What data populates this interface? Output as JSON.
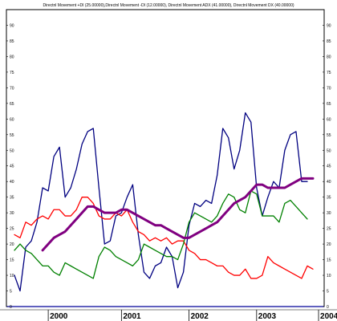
{
  "chart_data": {
    "type": "line",
    "title": "Directnl Movement +DI (25.00000),Directnl Movement -DI (12.00000), Directnl Movement ADX (41.00000), Directnl Movement DX (40.00000)",
    "xlabel": "",
    "ylabel": "",
    "ylim": [
      0,
      95
    ],
    "grid": false,
    "legend": "none",
    "x_labels": [
      "2000",
      "2001",
      "2002",
      "2003",
      "2004",
      "200"
    ],
    "y_ticks": [
      0,
      5,
      10,
      15,
      20,
      25,
      30,
      35,
      40,
      45,
      50,
      55,
      60,
      65,
      70,
      75,
      80,
      85,
      90
    ],
    "x_tick_index": [
      6,
      19,
      31,
      43,
      54,
      66
    ],
    "series": [
      {
        "color": "#000080",
        "values": [
          10,
          5,
          19,
          21,
          27,
          38,
          37,
          48,
          51,
          35,
          38,
          44,
          52,
          56,
          57,
          38,
          20,
          21,
          29,
          30,
          35,
          39,
          23,
          11,
          9,
          13,
          14,
          19,
          16,
          6,
          11,
          26,
          33,
          32,
          34,
          33,
          42,
          57,
          54,
          44,
          50,
          62,
          59,
          38,
          29,
          35,
          40,
          38,
          50,
          55,
          56,
          40,
          40
        ]
      },
      {
        "color": "#ff0000",
        "values": [
          23,
          22,
          27,
          26,
          28,
          29,
          28,
          31,
          31,
          29,
          29,
          31,
          35,
          35,
          33,
          29,
          28,
          28,
          30,
          29,
          31,
          27,
          24,
          23,
          21,
          22,
          21,
          22,
          20,
          21,
          21,
          18,
          17,
          15,
          15,
          14,
          13,
          13,
          11,
          10,
          10,
          12,
          9,
          9,
          10,
          16,
          14,
          13,
          12,
          11,
          10,
          9,
          13,
          12
        ]
      },
      {
        "color": "#008000",
        "values": [
          18,
          20,
          18,
          17,
          15,
          13,
          13,
          11,
          10,
          14,
          13,
          12,
          11,
          10,
          9,
          16,
          19,
          18,
          16,
          15,
          14,
          13,
          15,
          20,
          19,
          18,
          17,
          16,
          16,
          15,
          20,
          27,
          30,
          29,
          28,
          27,
          29,
          33,
          36,
          35,
          31,
          30,
          37,
          36,
          29,
          29,
          29,
          27,
          33,
          34,
          32,
          30,
          28
        ]
      },
      {
        "color": "#800080",
        "values": [
          null,
          null,
          null,
          null,
          null,
          18,
          20,
          22,
          23,
          24,
          26,
          28,
          30,
          32,
          32,
          31,
          30,
          30,
          30,
          31,
          31,
          30,
          29,
          28,
          27,
          26,
          26,
          25,
          24,
          23,
          22,
          22,
          23,
          24,
          25,
          26,
          27,
          29,
          31,
          33,
          34,
          35,
          37,
          39,
          39,
          38,
          38,
          38,
          38,
          39,
          40,
          41,
          41,
          41
        ]
      }
    ]
  }
}
